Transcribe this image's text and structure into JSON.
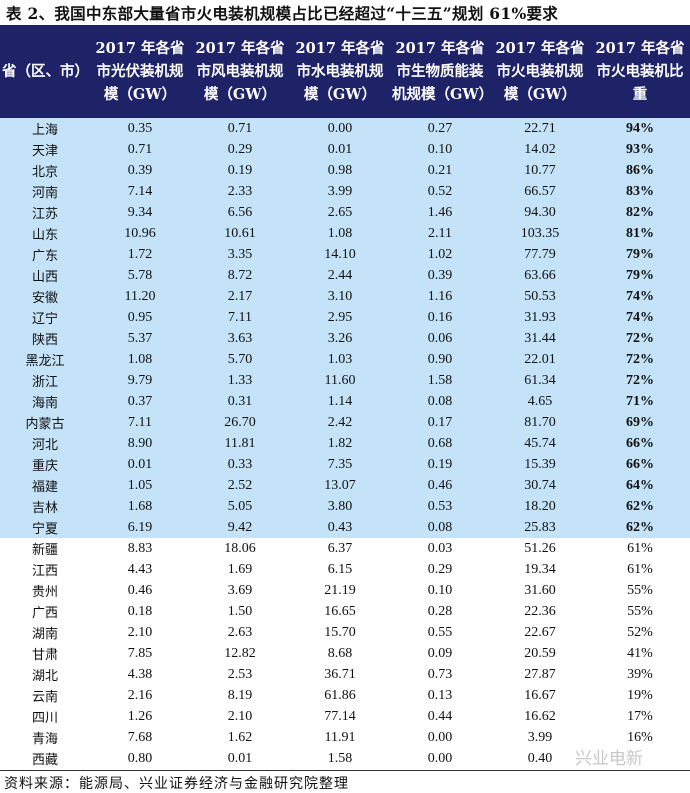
{
  "title": "表 2、我国中东部大量省市火电装机规模占比已经超过“十三五”规划 61%要求",
  "headers": [
    "省（区、市）",
    "2017 年各省市光伏装机规模（GW）",
    "2017 年各省市风电装机规模（GW）",
    "2017 年各省市水电装机规模（GW）",
    "2017 年各省市生物质能装机规模（GW）",
    "2017 年各省市火电装机规模（GW）",
    "2017 年各省市火电装机比重"
  ],
  "highlight_color": "#c4e3f8",
  "header_color": "#1e2266",
  "rows": [
    [
      "上海",
      "0.35",
      "0.71",
      "0.00",
      "0.27",
      "22.71",
      "94%"
    ],
    [
      "天津",
      "0.71",
      "0.29",
      "0.01",
      "0.10",
      "14.02",
      "93%"
    ],
    [
      "北京",
      "0.39",
      "0.19",
      "0.98",
      "0.21",
      "10.77",
      "86%"
    ],
    [
      "河南",
      "7.14",
      "2.33",
      "3.99",
      "0.52",
      "66.57",
      "83%"
    ],
    [
      "江苏",
      "9.34",
      "6.56",
      "2.65",
      "1.46",
      "94.30",
      "82%"
    ],
    [
      "山东",
      "10.96",
      "10.61",
      "1.08",
      "2.11",
      "103.35",
      "81%"
    ],
    [
      "广东",
      "1.72",
      "3.35",
      "14.10",
      "1.02",
      "77.79",
      "79%"
    ],
    [
      "山西",
      "5.78",
      "8.72",
      "2.44",
      "0.39",
      "63.66",
      "79%"
    ],
    [
      "安徽",
      "11.20",
      "2.17",
      "3.10",
      "1.16",
      "50.53",
      "74%"
    ],
    [
      "辽宁",
      "0.95",
      "7.11",
      "2.95",
      "0.16",
      "31.93",
      "74%"
    ],
    [
      "陕西",
      "5.37",
      "3.63",
      "3.26",
      "0.06",
      "31.44",
      "72%"
    ],
    [
      "黑龙江",
      "1.08",
      "5.70",
      "1.03",
      "0.90",
      "22.01",
      "72%"
    ],
    [
      "浙江",
      "9.79",
      "1.33",
      "11.60",
      "1.58",
      "61.34",
      "72%"
    ],
    [
      "海南",
      "0.37",
      "0.31",
      "1.14",
      "0.08",
      "4.65",
      "71%"
    ],
    [
      "内蒙古",
      "7.11",
      "26.70",
      "2.42",
      "0.17",
      "81.70",
      "69%"
    ],
    [
      "河北",
      "8.90",
      "11.81",
      "1.82",
      "0.68",
      "45.74",
      "66%"
    ],
    [
      "重庆",
      "0.01",
      "0.33",
      "7.35",
      "0.19",
      "15.39",
      "66%"
    ],
    [
      "福建",
      "1.05",
      "2.52",
      "13.07",
      "0.46",
      "30.74",
      "64%"
    ],
    [
      "吉林",
      "1.68",
      "5.05",
      "3.80",
      "0.53",
      "18.20",
      "62%"
    ],
    [
      "宁夏",
      "6.19",
      "9.42",
      "0.43",
      "0.08",
      "25.83",
      "62%"
    ],
    [
      "新疆",
      "8.83",
      "18.06",
      "6.37",
      "0.03",
      "51.26",
      "61%"
    ],
    [
      "江西",
      "4.43",
      "1.69",
      "6.15",
      "0.29",
      "19.34",
      "61%"
    ],
    [
      "贵州",
      "0.46",
      "3.69",
      "21.19",
      "0.10",
      "31.60",
      "55%"
    ],
    [
      "广西",
      "0.18",
      "1.50",
      "16.65",
      "0.28",
      "22.36",
      "55%"
    ],
    [
      "湖南",
      "2.10",
      "2.63",
      "15.70",
      "0.55",
      "22.67",
      "52%"
    ],
    [
      "甘肃",
      "7.85",
      "12.82",
      "8.68",
      "0.09",
      "20.59",
      "41%"
    ],
    [
      "湖北",
      "4.38",
      "2.53",
      "36.71",
      "0.73",
      "27.87",
      "39%"
    ],
    [
      "云南",
      "2.16",
      "8.19",
      "61.86",
      "0.13",
      "16.67",
      "19%"
    ],
    [
      "四川",
      "1.26",
      "2.10",
      "77.14",
      "0.44",
      "16.62",
      "17%"
    ],
    [
      "青海",
      "7.68",
      "1.62",
      "11.91",
      "0.00",
      "3.99",
      "16%"
    ],
    [
      "西藏",
      "0.80",
      "0.01",
      "1.58",
      "0.00",
      "0.40",
      ""
    ]
  ],
  "highlighted_row_count": 20,
  "source": "资料来源：能源局、兴业证券经济与金融研究院整理",
  "watermark": "兴业电新"
}
